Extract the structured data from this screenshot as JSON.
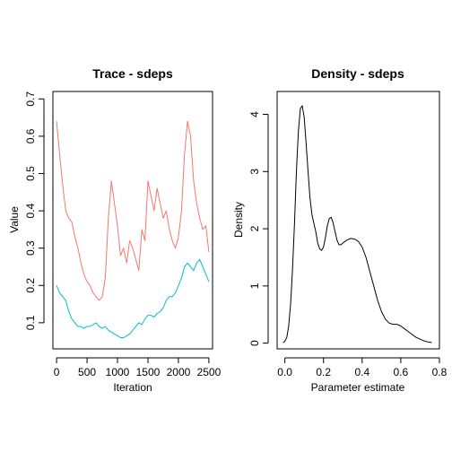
{
  "colors": {
    "series_1": "#F8766D",
    "series_2": "#00BFC4",
    "density": "#000000"
  },
  "chart_data": [
    {
      "type": "line",
      "title": "Trace - sdeps",
      "xlabel": "Iteration",
      "ylabel": "Value",
      "xlim": [
        -60,
        2560
      ],
      "ylim": [
        0.03,
        0.72
      ],
      "xticks": [
        0,
        500,
        1000,
        1500,
        2000,
        2500
      ],
      "xtick_labels": [
        "0",
        "500",
        "1000",
        "1500",
        "2000",
        "2500"
      ],
      "yticks": [
        0.1,
        0.2,
        0.3,
        0.4,
        0.5,
        0.6,
        0.7
      ],
      "ytick_labels": [
        "0.1",
        "0.2",
        "0.3",
        "0.4",
        "0.5",
        "0.6",
        "0.7"
      ],
      "grid": false,
      "series": [
        {
          "color": "#F8766D",
          "x": [
            0,
            50,
            100,
            150,
            200,
            250,
            300,
            350,
            400,
            450,
            500,
            550,
            600,
            650,
            700,
            750,
            800,
            850,
            900,
            950,
            1000,
            1050,
            1100,
            1150,
            1200,
            1250,
            1300,
            1350,
            1400,
            1450,
            1500,
            1550,
            1600,
            1650,
            1700,
            1750,
            1800,
            1850,
            1900,
            1950,
            2000,
            2050,
            2100,
            2150,
            2200,
            2250,
            2300,
            2350,
            2400,
            2450,
            2500
          ],
          "y": [
            0.64,
            0.55,
            0.47,
            0.4,
            0.38,
            0.37,
            0.33,
            0.3,
            0.26,
            0.23,
            0.21,
            0.2,
            0.18,
            0.17,
            0.16,
            0.17,
            0.22,
            0.38,
            0.48,
            0.42,
            0.36,
            0.28,
            0.3,
            0.26,
            0.32,
            0.3,
            0.27,
            0.24,
            0.35,
            0.32,
            0.48,
            0.44,
            0.4,
            0.46,
            0.42,
            0.38,
            0.4,
            0.35,
            0.32,
            0.3,
            0.33,
            0.4,
            0.55,
            0.64,
            0.6,
            0.48,
            0.42,
            0.38,
            0.35,
            0.36,
            0.29
          ]
        },
        {
          "color": "#00BFC4",
          "x": [
            0,
            50,
            100,
            150,
            200,
            250,
            300,
            350,
            400,
            450,
            500,
            550,
            600,
            650,
            700,
            750,
            800,
            850,
            900,
            950,
            1000,
            1050,
            1100,
            1150,
            1200,
            1250,
            1300,
            1350,
            1400,
            1450,
            1500,
            1550,
            1600,
            1650,
            1700,
            1750,
            1800,
            1850,
            1900,
            1950,
            2000,
            2050,
            2100,
            2150,
            2200,
            2250,
            2300,
            2350,
            2400,
            2450,
            2500
          ],
          "y": [
            0.2,
            0.18,
            0.17,
            0.16,
            0.13,
            0.11,
            0.1,
            0.09,
            0.09,
            0.085,
            0.09,
            0.09,
            0.095,
            0.1,
            0.09,
            0.085,
            0.09,
            0.08,
            0.075,
            0.07,
            0.065,
            0.06,
            0.06,
            0.065,
            0.07,
            0.08,
            0.09,
            0.1,
            0.095,
            0.11,
            0.12,
            0.12,
            0.115,
            0.125,
            0.13,
            0.14,
            0.16,
            0.17,
            0.17,
            0.18,
            0.2,
            0.22,
            0.25,
            0.26,
            0.25,
            0.24,
            0.26,
            0.27,
            0.25,
            0.23,
            0.21
          ]
        }
      ]
    },
    {
      "type": "line",
      "title": "Density - sdeps",
      "xlabel": "Parameter estimate",
      "ylabel": "Density",
      "xlim": [
        -0.04,
        0.8
      ],
      "ylim": [
        -0.1,
        4.4
      ],
      "xticks": [
        0.0,
        0.2,
        0.4,
        0.6,
        0.8
      ],
      "xtick_labels": [
        "0.0",
        "0.2",
        "0.4",
        "0.6",
        "0.8"
      ],
      "yticks": [
        0,
        1,
        2,
        3,
        4
      ],
      "ytick_labels": [
        "0",
        "1",
        "2",
        "3",
        "4"
      ],
      "grid": false,
      "series": [
        {
          "color": "#000000",
          "x": [
            -0.01,
            0.0,
            0.01,
            0.02,
            0.03,
            0.04,
            0.05,
            0.06,
            0.07,
            0.08,
            0.09,
            0.1,
            0.11,
            0.12,
            0.13,
            0.14,
            0.15,
            0.16,
            0.17,
            0.18,
            0.19,
            0.2,
            0.21,
            0.22,
            0.23,
            0.24,
            0.25,
            0.26,
            0.27,
            0.28,
            0.29,
            0.3,
            0.32,
            0.34,
            0.36,
            0.38,
            0.4,
            0.42,
            0.44,
            0.46,
            0.48,
            0.5,
            0.52,
            0.54,
            0.56,
            0.58,
            0.6,
            0.62,
            0.64,
            0.66,
            0.68,
            0.7,
            0.72,
            0.74,
            0.76
          ],
          "y": [
            0.01,
            0.03,
            0.1,
            0.3,
            0.7,
            1.3,
            2.1,
            3.0,
            3.7,
            4.1,
            4.15,
            3.95,
            3.5,
            3.0,
            2.55,
            2.25,
            2.1,
            1.95,
            1.75,
            1.65,
            1.62,
            1.68,
            1.85,
            2.05,
            2.18,
            2.2,
            2.1,
            1.95,
            1.8,
            1.72,
            1.72,
            1.75,
            1.8,
            1.83,
            1.82,
            1.78,
            1.68,
            1.5,
            1.25,
            1.0,
            0.75,
            0.55,
            0.42,
            0.35,
            0.33,
            0.33,
            0.3,
            0.25,
            0.2,
            0.15,
            0.1,
            0.07,
            0.04,
            0.02,
            0.01
          ]
        }
      ]
    }
  ]
}
